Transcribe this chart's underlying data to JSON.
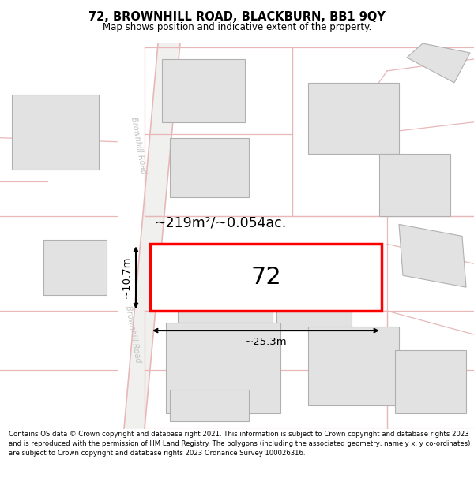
{
  "title": "72, BROWNHILL ROAD, BLACKBURN, BB1 9QY",
  "subtitle": "Map shows position and indicative extent of the property.",
  "footer": "Contains OS data © Crown copyright and database right 2021. This information is subject to Crown copyright and database rights 2023 and is reproduced with the permission of HM Land Registry. The polygons (including the associated geometry, namely x, y co-ordinates) are subject to Crown copyright and database rights 2023 Ordnance Survey 100026316.",
  "bg_color": "#f7f7f5",
  "road_color": "#f5f5f5",
  "road_line_color": "#e8b8b8",
  "building_fill": "#e2e2e2",
  "building_border": "#b0b0b0",
  "highlight_fill": "#ffffff",
  "highlight_border": "#ff0000",
  "road_label": "Brownhill Road",
  "property_label": "72",
  "area_label": "~219m²/~0.054ac.",
  "width_label": "~25.3m",
  "height_label": "~10.7m"
}
